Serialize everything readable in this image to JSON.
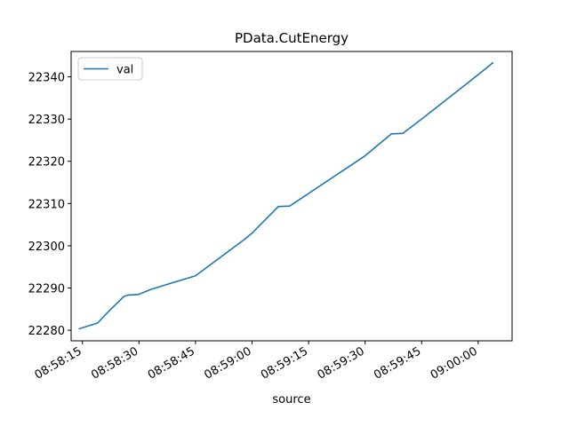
{
  "chart_data": {
    "type": "line",
    "title": "PData.CutEnergy",
    "xlabel": "source",
    "ylabel": "",
    "x_axis_type": "time",
    "x_tick_labels": [
      "08:58:15",
      "08:58:30",
      "08:58:45",
      "08:59:00",
      "08:59:15",
      "08:59:30",
      "08:59:45",
      "09:00:00"
    ],
    "y_ticks": [
      22280,
      22290,
      22300,
      22310,
      22320,
      22330,
      22340
    ],
    "ylim": [
      22277.5,
      22346
    ],
    "xlim": [
      "08:58:12",
      "09:00:09"
    ],
    "grid": false,
    "legend_position": "top-left",
    "series": [
      {
        "name": "val",
        "color": "#1f77b4",
        "points": [
          {
            "x": "08:58:14",
            "y": 22280.3
          },
          {
            "x": "08:58:19",
            "y": 22281.7
          },
          {
            "x": "08:58:22",
            "y": 22284.5
          },
          {
            "x": "08:58:26",
            "y": 22288.0
          },
          {
            "x": "08:58:27",
            "y": 22288.3
          },
          {
            "x": "08:58:30",
            "y": 22288.5
          },
          {
            "x": "08:58:33",
            "y": 22289.6
          },
          {
            "x": "08:58:38",
            "y": 22291.0
          },
          {
            "x": "08:58:45",
            "y": 22292.9
          },
          {
            "x": "08:58:58",
            "y": 22301.5
          },
          {
            "x": "08:59:00",
            "y": 22303.0
          },
          {
            "x": "08:59:07",
            "y": 22309.3
          },
          {
            "x": "08:59:10",
            "y": 22309.4
          },
          {
            "x": "08:59:30",
            "y": 22321.3
          },
          {
            "x": "08:59:37",
            "y": 22326.5
          },
          {
            "x": "08:59:40",
            "y": 22326.6
          },
          {
            "x": "08:59:45",
            "y": 22330.0
          },
          {
            "x": "09:00:00",
            "y": 22340.5
          },
          {
            "x": "09:00:04",
            "y": 22343.4
          }
        ]
      }
    ]
  }
}
